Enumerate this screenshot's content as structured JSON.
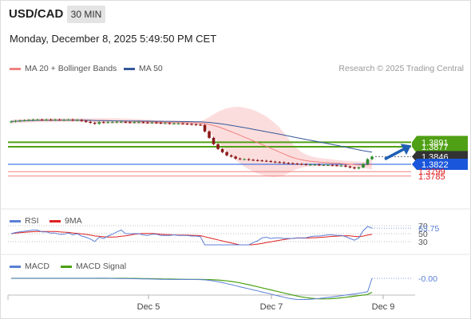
{
  "header": {
    "symbol": "USD/CAD",
    "timeframe": "30 MIN",
    "datetime": "Monday, December 8, 2025 5:49:50 PM CET",
    "credit": "Research © 2025 Trading Central"
  },
  "legend": {
    "ma20": {
      "label": "MA 20 + Bollinger Bands",
      "color": "#f08080"
    },
    "ma50": {
      "label": "MA 50",
      "color": "#34589a"
    },
    "rsi": {
      "label": "RSI",
      "color": "#5b7fd6"
    },
    "rsi_ma": {
      "label": "9MA",
      "color": "#e02020"
    },
    "macd": {
      "label": "MACD",
      "color": "#5b7fd6"
    },
    "macd_signal": {
      "label": "MACD Signal",
      "color": "#49a012"
    }
  },
  "colors": {
    "bull": "#2e8b2e",
    "bear": "#8b1a1a",
    "resistance": "#4fa014",
    "pivot": "#1a56db",
    "support": "#f08080",
    "current": "#333333",
    "band_fill": "#fbd5d5"
  },
  "chart_data": {
    "type": "candlestick",
    "x_ticks": [
      "Dec 5",
      "Dec 7",
      "Dec 9"
    ],
    "levels": {
      "resistance": [
        1.3891,
        1.3877
      ],
      "current": 1.3846,
      "pivot": 1.3822,
      "support": [
        1.3799,
        1.3785
      ]
    },
    "level_labels": {
      "r1": "1.3891",
      "r2": "1.3877",
      "current": "1.3846",
      "pivot": "1.3822",
      "s1": "1.3799",
      "s2": "1.3785"
    },
    "price_series_close": [
      1.3956,
      1.3958,
      1.3959,
      1.396,
      1.3961,
      1.3962,
      1.3962,
      1.3961,
      1.3962,
      1.3961,
      1.3962,
      1.3961,
      1.3961,
      1.3962,
      1.396,
      1.3961,
      1.3958,
      1.3955,
      1.3952,
      1.3949,
      1.3954,
      1.3953,
      1.3954,
      1.3954,
      1.3955,
      1.3955,
      1.3954,
      1.3953,
      1.3954,
      1.3954,
      1.3953,
      1.3952,
      1.3953,
      1.3952,
      1.3951,
      1.3951,
      1.395,
      1.395,
      1.395,
      1.3949,
      1.3948,
      1.3947,
      1.3946,
      1.3945,
      1.3925,
      1.3905,
      1.3885,
      1.387,
      1.386,
      1.385,
      1.3846,
      1.384,
      1.3838,
      1.3838,
      1.3836,
      1.3835,
      1.3834,
      1.3833,
      1.3832,
      1.383,
      1.3829,
      1.3828,
      1.3826,
      1.3825,
      1.3824,
      1.3823,
      1.3822,
      1.3821,
      1.3821,
      1.3821,
      1.382,
      1.382,
      1.382,
      1.3819,
      1.3818,
      1.3818,
      1.3815,
      1.3812,
      1.3809,
      1.3812,
      1.3823,
      1.3838,
      1.3846
    ],
    "forecast": {
      "from": 1.3838,
      "to": 1.3871,
      "direction": "up"
    },
    "rsi": {
      "value": 63.75,
      "value_label": "63.75",
      "levels": [
        70,
        50,
        30
      ],
      "level_labels": [
        "70",
        "50",
        "30"
      ]
    },
    "macd": {
      "value": -0.0,
      "value_label": "-0.00"
    }
  }
}
